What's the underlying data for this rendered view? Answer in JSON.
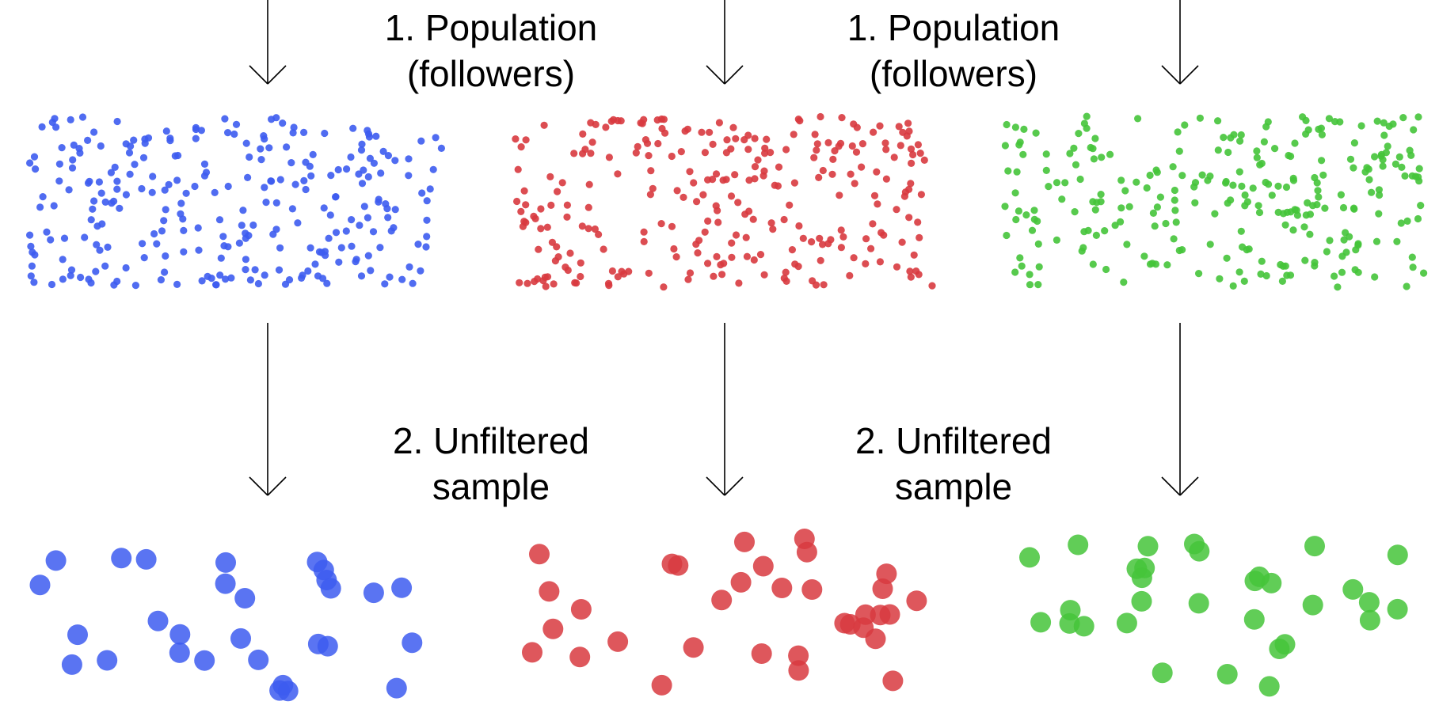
{
  "labels": {
    "population": {
      "line1": "1. Population",
      "line2": "(followers)"
    },
    "sample": {
      "line1": "2. Unfiltered",
      "line2": "sample"
    }
  },
  "groups": [
    {
      "name": "blue",
      "color": "#3d5cf0",
      "population_count": 270,
      "sample_count": 29
    },
    {
      "name": "red",
      "color": "#d83a3f",
      "population_count": 270,
      "sample_count": 33
    },
    {
      "name": "green",
      "color": "#45c43a",
      "population_count": 270,
      "sample_count": 31
    }
  ],
  "colors": {
    "arrow": "#000000",
    "background": "#ffffff"
  }
}
